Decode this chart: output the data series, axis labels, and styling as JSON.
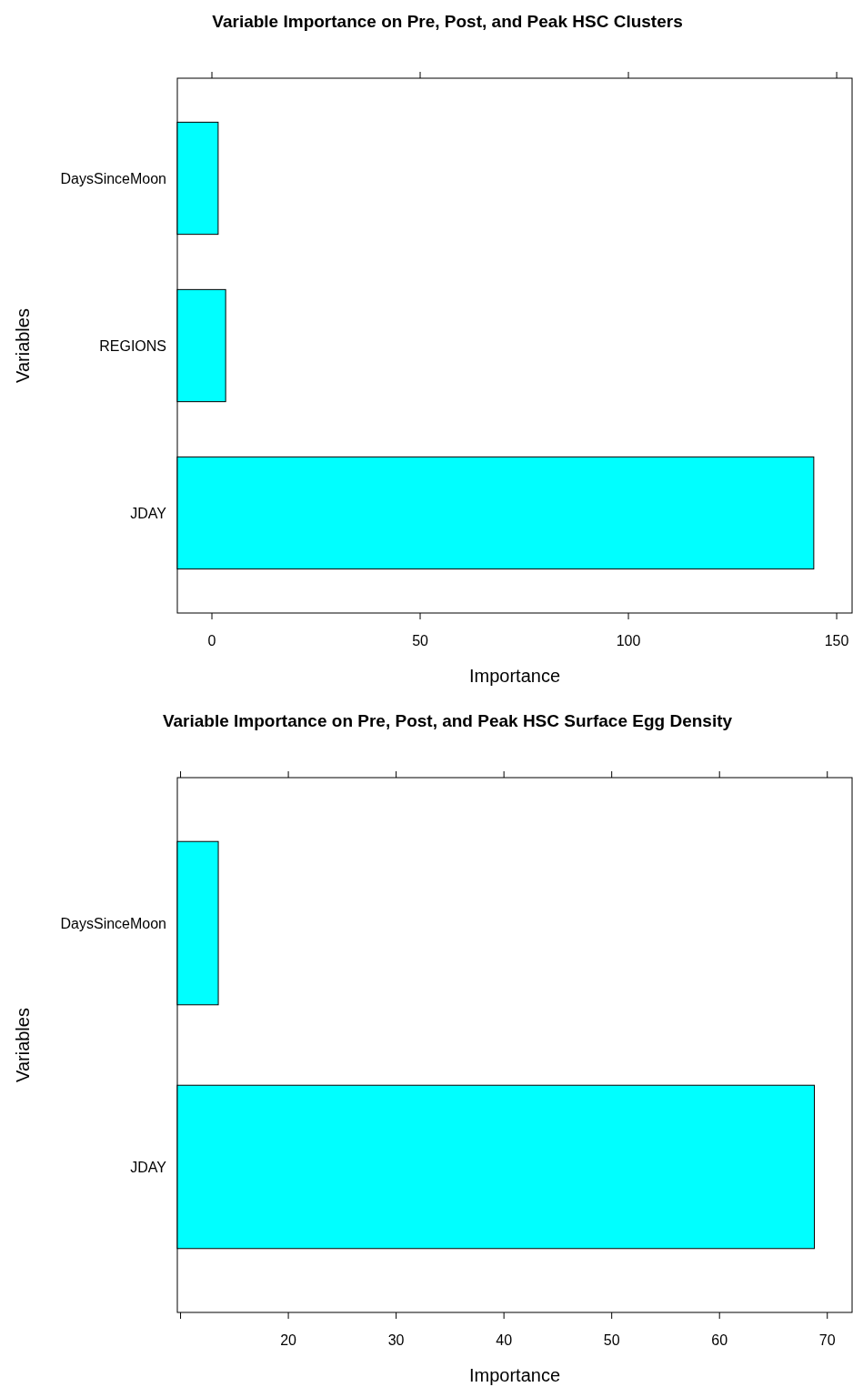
{
  "chart_data": [
    {
      "type": "bar",
      "orientation": "horizontal",
      "title": "Variable Importance on Pre, Post, and Peak HSC Clusters",
      "xlabel": "Importance",
      "ylabel": "Variables",
      "categories": [
        "DaysSinceMoon",
        "REGIONS",
        "JDAY"
      ],
      "base": [
        -8.3,
        -8.3,
        -8.3
      ],
      "values": [
        9.8,
        11.6,
        152.8
      ],
      "color": "#00ffff",
      "xlim": [
        -8.3,
        153.7
      ],
      "xticks": [
        0,
        50,
        100,
        150
      ]
    },
    {
      "type": "bar",
      "orientation": "horizontal",
      "title": "Variable Importance on Pre, Post, and Peak HSC Surface Egg Density",
      "xlabel": "Importance",
      "ylabel": "Variables",
      "categories": [
        "DaysSinceMoon",
        "JDAY"
      ],
      "base": [
        9.7,
        9.7
      ],
      "values": [
        3.8,
        59.1
      ],
      "color": "#00ffff",
      "xlim": [
        9.7,
        72.3
      ],
      "xticks": [
        {
          "value": 10,
          "label": null
        },
        20,
        30,
        40,
        50,
        60,
        70
      ]
    }
  ]
}
